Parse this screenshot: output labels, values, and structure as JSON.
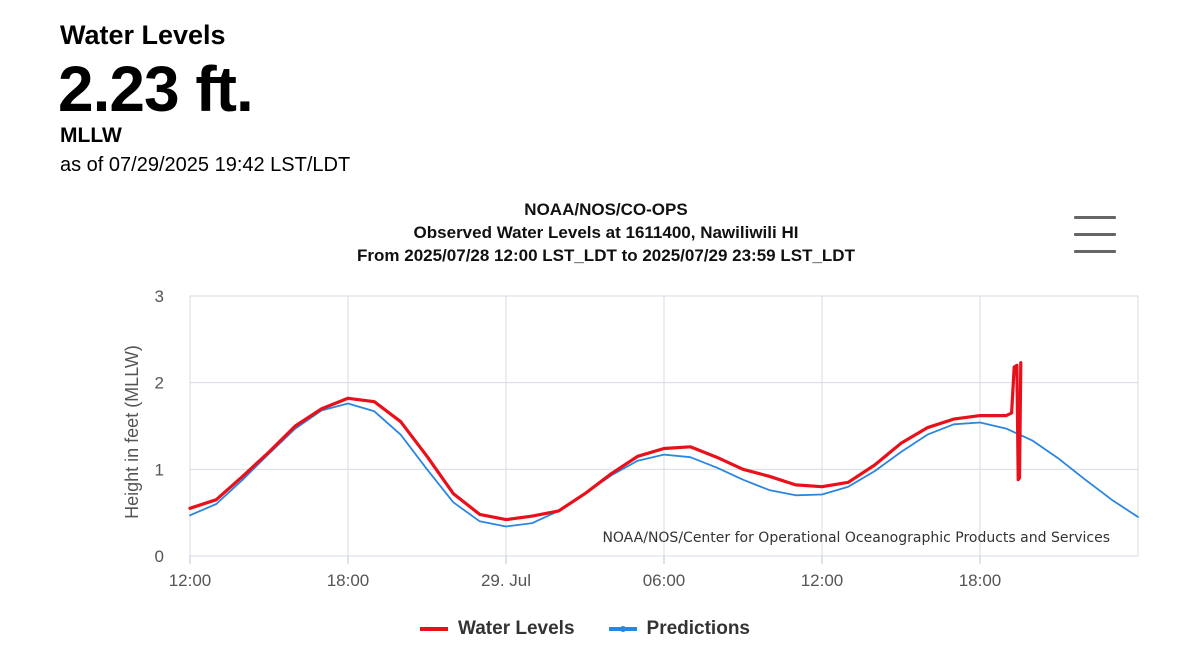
{
  "header": {
    "label": "Water Levels",
    "value": "2.23 ft.",
    "datum": "MLLW",
    "as_of": "as of 07/29/2025 19:42 LST/LDT"
  },
  "menu_icon": "hamburger-menu-icon",
  "colors": {
    "water_levels": "#e8101a",
    "predictions": "#2b86e0",
    "grid": "#d6dbe6"
  },
  "chart_data": {
    "type": "line",
    "title": "NOAA/NOS/CO-OPS",
    "subtitle": "Observed Water Levels at 1611400, Nawiliwili HI",
    "subtitle2": "From 2025/07/28 12:00 LST_LDT to 2025/07/29 23:59 LST_LDT",
    "xlabel": "",
    "ylabel": "Height in feet (MLLW)",
    "xlim_hours": [
      0,
      36
    ],
    "ylim": [
      0,
      3
    ],
    "x_ticks": [
      {
        "hour": 0,
        "label": "12:00"
      },
      {
        "hour": 6,
        "label": "18:00"
      },
      {
        "hour": 12,
        "label": "29. Jul"
      },
      {
        "hour": 18,
        "label": "06:00"
      },
      {
        "hour": 24,
        "label": "12:00"
      },
      {
        "hour": 30,
        "label": "18:00"
      }
    ],
    "y_ticks": [
      0,
      1,
      2,
      3
    ],
    "credits": "NOAA/NOS/Center for Operational Oceanographic Products and Services",
    "series": [
      {
        "name": "Water Levels",
        "x_hours": [
          0,
          1,
          2,
          3,
          4,
          5,
          6,
          7,
          8,
          9,
          10,
          11,
          12,
          13,
          14,
          15,
          16,
          17,
          18,
          19,
          20,
          21,
          22,
          23,
          24,
          25,
          26,
          27,
          28,
          29,
          30,
          31,
          31.2,
          31.3,
          31.4,
          31.45,
          31.5,
          31.55
        ],
        "values": [
          0.55,
          0.65,
          0.92,
          1.2,
          1.5,
          1.7,
          1.82,
          1.78,
          1.55,
          1.15,
          0.72,
          0.48,
          0.42,
          0.46,
          0.52,
          0.72,
          0.95,
          1.15,
          1.24,
          1.26,
          1.14,
          1.0,
          0.92,
          0.82,
          0.8,
          0.85,
          1.05,
          1.3,
          1.48,
          1.58,
          1.62,
          1.62,
          1.65,
          2.18,
          2.2,
          0.88,
          0.9,
          2.23
        ]
      },
      {
        "name": "Predictions",
        "x_hours": [
          0,
          1,
          2,
          3,
          4,
          5,
          6,
          7,
          8,
          9,
          10,
          11,
          12,
          13,
          14,
          15,
          16,
          17,
          18,
          19,
          20,
          21,
          22,
          23,
          24,
          25,
          26,
          27,
          28,
          29,
          30,
          31,
          32,
          33,
          34,
          35,
          36
        ],
        "values": [
          0.47,
          0.6,
          0.88,
          1.18,
          1.47,
          1.68,
          1.76,
          1.67,
          1.4,
          1.0,
          0.62,
          0.4,
          0.34,
          0.38,
          0.52,
          0.72,
          0.93,
          1.1,
          1.17,
          1.14,
          1.02,
          0.88,
          0.76,
          0.7,
          0.71,
          0.8,
          0.98,
          1.2,
          1.4,
          1.52,
          1.54,
          1.47,
          1.33,
          1.12,
          0.88,
          0.65,
          0.45
        ]
      }
    ]
  }
}
